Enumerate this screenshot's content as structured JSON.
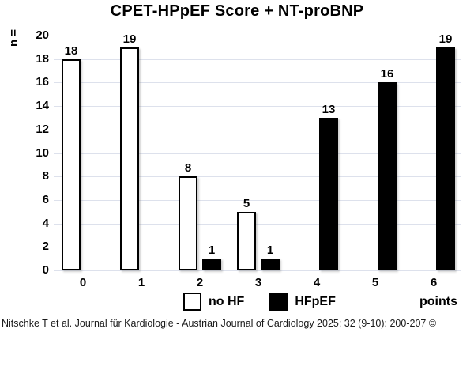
{
  "title": "CPET-HPpEF Score + NT-proBNP",
  "citation": "Nitschke T et al. Journal für Kardiologie - Austrian Journal of Cardiology 2025; 32 (9-10): 200-207 ©",
  "colors": {
    "no_hf_fill": "#ffffff",
    "hfpef_fill": "#000000",
    "bar_border": "#000000",
    "gridline": "#dde1ec",
    "text": "#000000"
  },
  "chart_data": {
    "type": "bar",
    "title": "CPET-HPpEF Score + NT-proBNP",
    "categories": [
      "0",
      "1",
      "2",
      "3",
      "4",
      "5",
      "6"
    ],
    "series": [
      {
        "name": "no HF",
        "values": [
          18,
          19,
          8,
          5,
          0,
          0,
          0
        ],
        "fill": "#ffffff",
        "border": "#000000"
      },
      {
        "name": "HFpEF",
        "values": [
          0,
          0,
          1,
          1,
          13,
          16,
          19
        ],
        "fill": "#000000",
        "border": "#000000"
      }
    ],
    "ylabel": "n =",
    "xlabel": "points",
    "ylim": [
      0,
      20
    ],
    "ytick_step": 2,
    "yticks": [
      0,
      2,
      4,
      6,
      8,
      10,
      12,
      14,
      16,
      18,
      20
    ],
    "grid": "horizontal",
    "legend_position": "bottom",
    "value_labels": true
  }
}
